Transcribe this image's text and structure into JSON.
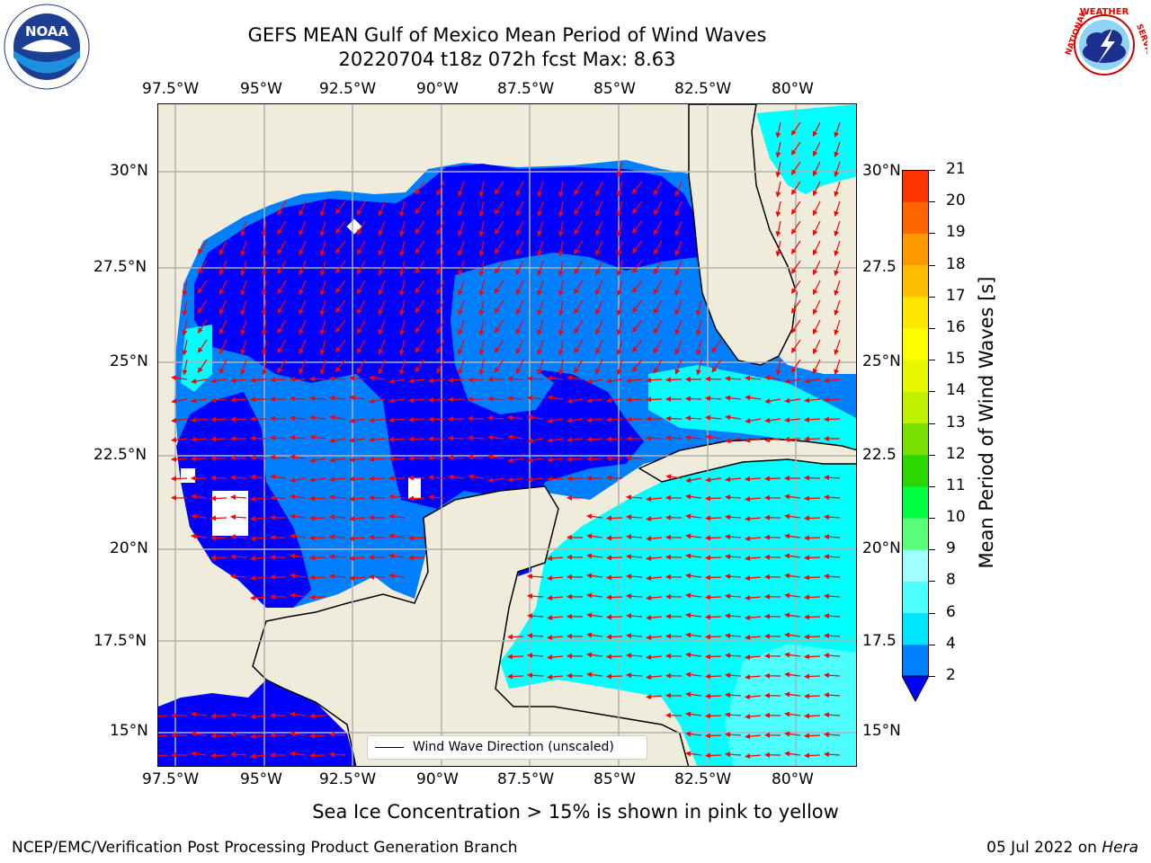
{
  "header": {
    "title_line1": "GEFS MEAN Gulf of Mexico Mean Period of Wind Waves",
    "title_line2": "20220704 t18z 072h fcst   Max: 8.63"
  },
  "axes": {
    "lon_labels": [
      "97.5°W",
      "95°W",
      "92.5°W",
      "90°W",
      "87.5°W",
      "85°W",
      "82.5°W",
      "80°W"
    ],
    "lat_labels_left": [
      "30°N",
      "27.5°N",
      "25°N",
      "22.5°N",
      "20°N",
      "17.5°N",
      "15°N"
    ],
    "lat_labels_right": [
      "30°N",
      "27.5",
      "25°N",
      "22.5",
      "20°N",
      "17.5",
      "15°N"
    ]
  },
  "map": {
    "land_color": "#efecdc",
    "colors": {
      "bin_2_4": "#0000ff",
      "bin_4_6": "#0080ff",
      "bin_6_8": "#00ffff",
      "bin_8_9": "#4dffff",
      "arrow": "#ff0000"
    }
  },
  "legend": {
    "label": "Wind Wave Direction (unscaled)"
  },
  "colorbar": {
    "label": "Mean Period of Wind Waves [s]",
    "ticks": [
      "2",
      "4",
      "6",
      "8",
      "9",
      "10",
      "11",
      "12",
      "13",
      "14",
      "15",
      "16",
      "17",
      "18",
      "19",
      "20",
      "21"
    ],
    "colors": [
      "#0080ff",
      "#00e5ff",
      "#4dffff",
      "#a0ffff",
      "#59ff7a",
      "#00ff40",
      "#2ad800",
      "#7ae000",
      "#c0f000",
      "#e6f700",
      "#ffff00",
      "#ffe600",
      "#ffbf00",
      "#ff9900",
      "#ff6600",
      "#ff3300"
    ],
    "under_color": "#0000ff"
  },
  "footer": {
    "note": "Sea Ice Concentration > 15% is shown in pink to yellow",
    "credit": "NCEP/EMC/Verification Post Processing Product Generation Branch",
    "date_prefix": "05 Jul 2022 on ",
    "date_machine": "Hera"
  },
  "logos": {
    "left": "NOAA",
    "right_top": "WEATHER",
    "right_left": "NATIONAL",
    "right_right": "SERVICE"
  }
}
